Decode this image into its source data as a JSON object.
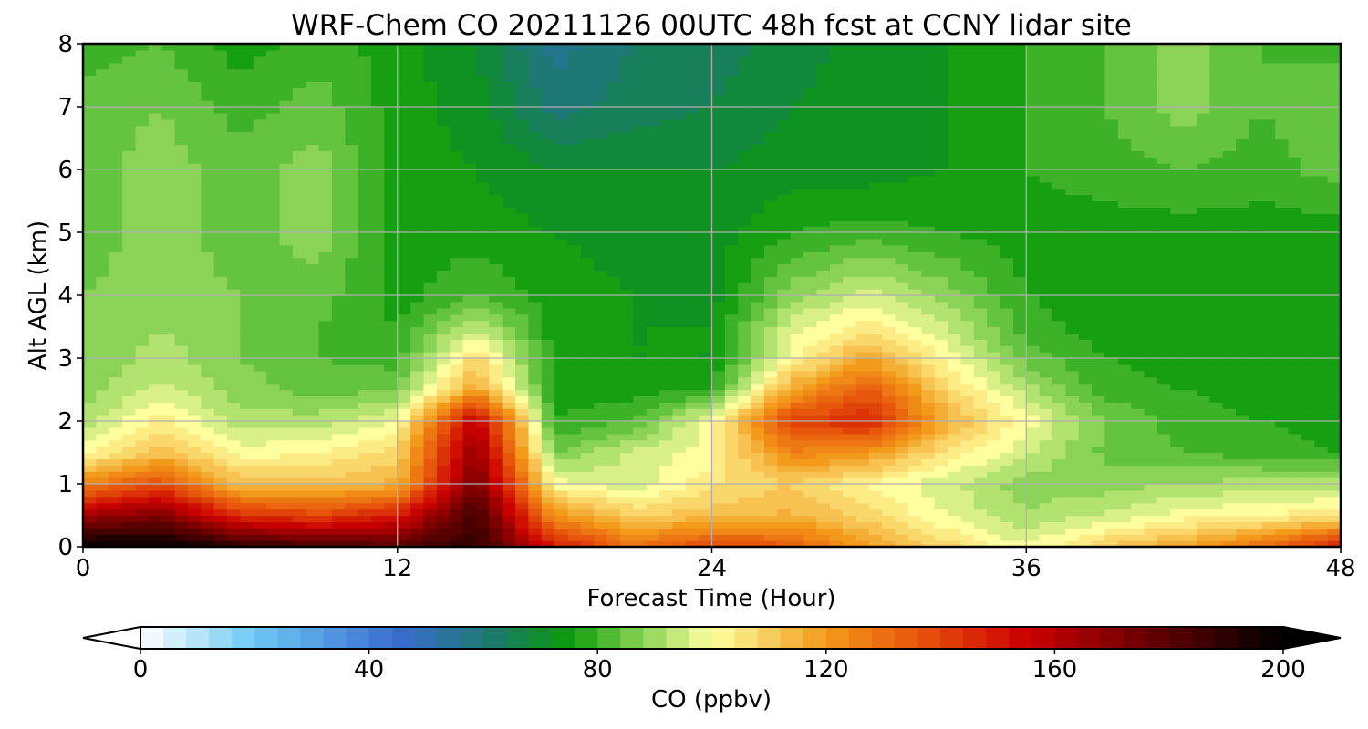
{
  "chart_data": {
    "type": "heatmap",
    "title": "WRF-Chem CO  20211126 00UTC 48h fcst at CCNY lidar site",
    "xlabel": "Forecast Time (Hour)",
    "ylabel": "Alt AGL (km)",
    "xlim": [
      0,
      48
    ],
    "ylim": [
      0,
      8
    ],
    "x_ticks": [
      "0",
      "12",
      "24",
      "36",
      "48"
    ],
    "y_ticks": [
      "0",
      "1",
      "2",
      "3",
      "4",
      "5",
      "6",
      "7",
      "8"
    ],
    "grid": true,
    "x": [
      0,
      3,
      6,
      9,
      12,
      15,
      18,
      21,
      24,
      27,
      30,
      33,
      36,
      39,
      42,
      45,
      48
    ],
    "y": [
      0,
      0.5,
      1,
      1.5,
      2,
      2.5,
      3,
      3.5,
      4,
      5,
      6,
      7,
      8
    ],
    "z": [
      [
        200,
        200,
        190,
        185,
        180,
        190,
        150,
        130,
        140,
        135,
        118,
        108,
        98,
        110,
        118,
        130,
        150
      ],
      [
        165,
        172,
        145,
        140,
        150,
        185,
        122,
        110,
        112,
        115,
        108,
        98,
        90,
        95,
        100,
        102,
        105
      ],
      [
        125,
        138,
        112,
        112,
        115,
        175,
        100,
        95,
        105,
        110,
        102,
        95,
        88,
        88,
        90,
        92,
        92
      ],
      [
        100,
        112,
        100,
        102,
        108,
        168,
        86,
        95,
        100,
        125,
        120,
        105,
        95,
        85,
        82,
        80,
        78
      ],
      [
        92,
        104,
        92,
        92,
        98,
        160,
        78,
        82,
        100,
        140,
        148,
        115,
        100,
        86,
        80,
        78,
        76
      ],
      [
        88,
        95,
        88,
        84,
        86,
        118,
        76,
        76,
        78,
        118,
        135,
        108,
        92,
        80,
        78,
        76,
        76
      ],
      [
        86,
        92,
        86,
        82,
        80,
        108,
        76,
        74,
        74,
        100,
        118,
        100,
        84,
        78,
        76,
        76,
        76
      ],
      [
        86,
        90,
        86,
        82,
        78,
        94,
        76,
        74,
        74,
        96,
        104,
        94,
        80,
        76,
        76,
        76,
        76
      ],
      [
        86,
        88,
        86,
        84,
        76,
        82,
        76,
        74,
        72,
        88,
        96,
        88,
        78,
        76,
        76,
        76,
        76
      ],
      [
        84,
        88,
        84,
        88,
        76,
        76,
        74,
        72,
        72,
        78,
        80,
        78,
        76,
        76,
        76,
        76,
        76
      ],
      [
        84,
        88,
        84,
        88,
        76,
        74,
        70,
        70,
        70,
        72,
        72,
        74,
        78,
        80,
        82,
        80,
        84
      ],
      [
        84,
        86,
        80,
        84,
        76,
        72,
        60,
        64,
        66,
        70,
        72,
        74,
        78,
        82,
        88,
        82,
        86
      ],
      [
        80,
        82,
        76,
        80,
        76,
        70,
        56,
        62,
        64,
        68,
        72,
        74,
        78,
        82,
        88,
        82,
        80
      ]
    ],
    "colorbar": {
      "label": "CO  (ppbv)",
      "min": 0,
      "max": 200,
      "ticks": [
        "0",
        "40",
        "80",
        "120",
        "160",
        "200"
      ],
      "extend": "both",
      "placement": "bottom"
    },
    "colors": {
      "stops": [
        [
          0,
          "#ffffff"
        ],
        [
          20,
          "#6cc8f4"
        ],
        [
          45,
          "#3a6cd0"
        ],
        [
          62,
          "#1a7a6a"
        ],
        [
          75,
          "#0b9a0b"
        ],
        [
          86,
          "#78cc4a"
        ],
        [
          100,
          "#ffffa0"
        ],
        [
          120,
          "#f39a1a"
        ],
        [
          135,
          "#e85a0c"
        ],
        [
          155,
          "#cc0000"
        ],
        [
          175,
          "#6e0000"
        ],
        [
          200,
          "#000000"
        ]
      ]
    }
  }
}
